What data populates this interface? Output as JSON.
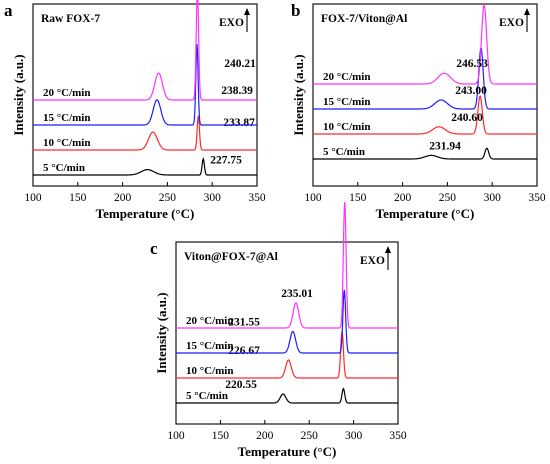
{
  "chart_data": [
    {
      "panel": "a",
      "type": "line",
      "title": "Raw FOX-7",
      "exo": "EXO",
      "xlabel": "Temperature (°C)",
      "ylabel": "Intensity (a.u.)",
      "xlim": [
        100,
        350
      ],
      "xticks": [
        100,
        150,
        200,
        250,
        300,
        350
      ],
      "series": [
        {
          "name": "5 °C/min",
          "color": "#000000",
          "offset": 0,
          "peaks": [
            [
              227.75,
              0.3,
              10
            ],
            [
              290.0,
              0.9,
              1.8
            ]
          ],
          "peak_label": "227.75"
        },
        {
          "name": "10 °C/min",
          "color": "#ff2a2a",
          "offset": 25,
          "peaks": [
            [
              233.87,
              1.0,
              7
            ],
            [
              284.5,
              1.9,
              1.8
            ]
          ],
          "peak_label": "233.87"
        },
        {
          "name": "15 °C/min",
          "color": "#1c1cff",
          "offset": 50,
          "peaks": [
            [
              238.39,
              1.4,
              6
            ],
            [
              283.0,
              4.5,
              1.8
            ]
          ],
          "peak_label": "238.39"
        },
        {
          "name": "20 °C/min",
          "color": "#ff33ff",
          "offset": 75,
          "peaks": [
            [
              240.21,
              1.5,
              6
            ],
            [
              283.5,
              6.1,
              1.9
            ]
          ],
          "peak_label": "240.21"
        }
      ]
    },
    {
      "panel": "b",
      "type": "line",
      "title": "FOX-7/Viton@Al",
      "exo": "EXO",
      "xlabel": "Temperature (°C)",
      "ylabel": "Intensity (a.u.)",
      "xlim": [
        100,
        350
      ],
      "xticks": [
        100,
        150,
        200,
        250,
        300,
        350
      ],
      "series": [
        {
          "name": "5 °C/min",
          "color": "#000000",
          "offset": 0,
          "peaks": [
            [
              231.94,
              0.2,
              10
            ],
            [
              294.0,
              0.6,
              3.0
            ]
          ],
          "peak_label": "231.94"
        },
        {
          "name": "10 °C/min",
          "color": "#ff2a2a",
          "offset": 25,
          "peaks": [
            [
              240.6,
              0.4,
              10
            ],
            [
              286.5,
              2.1,
              3.5
            ]
          ],
          "peak_label": "240.60"
        },
        {
          "name": "15 °C/min",
          "color": "#1c1cff",
          "offset": 50,
          "peaks": [
            [
              243.0,
              0.5,
              10
            ],
            [
              287.5,
              3.4,
              3.5
            ]
          ],
          "peak_label": "243.00"
        },
        {
          "name": "20 °C/min",
          "color": "#ff33ff",
          "offset": 75,
          "peaks": [
            [
              246.53,
              0.6,
              10
            ],
            [
              291.0,
              4.4,
              4.0
            ]
          ],
          "peak_label": "246.53"
        }
      ]
    },
    {
      "panel": "c",
      "type": "line",
      "title": "Viton@FOX-7@Al",
      "exo": "EXO",
      "xlabel": "Temperature (°C)",
      "ylabel": "Intensity (a.u.)",
      "xlim": [
        100,
        350
      ],
      "xticks": [
        100,
        150,
        200,
        250,
        300,
        350
      ],
      "series": [
        {
          "name": "5 °C/min",
          "color": "#000000",
          "offset": 0,
          "peaks": [
            [
              220.55,
              0.5,
              4.5
            ],
            [
              288.5,
              0.8,
              2.2
            ]
          ],
          "peak_label": "220.55"
        },
        {
          "name": "10 °C/min",
          "color": "#ff2a2a",
          "offset": 25,
          "peaks": [
            [
              226.67,
              1.0,
              4.5
            ],
            [
              287.0,
              2.6,
              2.2
            ]
          ],
          "peak_label": "226.67"
        },
        {
          "name": "15 °C/min",
          "color": "#1c1cff",
          "offset": 50,
          "peaks": [
            [
              231.55,
              1.2,
              4.5
            ],
            [
              289.5,
              3.5,
              2.2
            ]
          ],
          "peak_label": "231.55"
        },
        {
          "name": "20 °C/min",
          "color": "#ff33ff",
          "offset": 75,
          "peaks": [
            [
              235.01,
              1.4,
              4.5
            ],
            [
              290.0,
              7.0,
              2.2
            ]
          ],
          "peak_label": "235.01"
        }
      ]
    }
  ]
}
